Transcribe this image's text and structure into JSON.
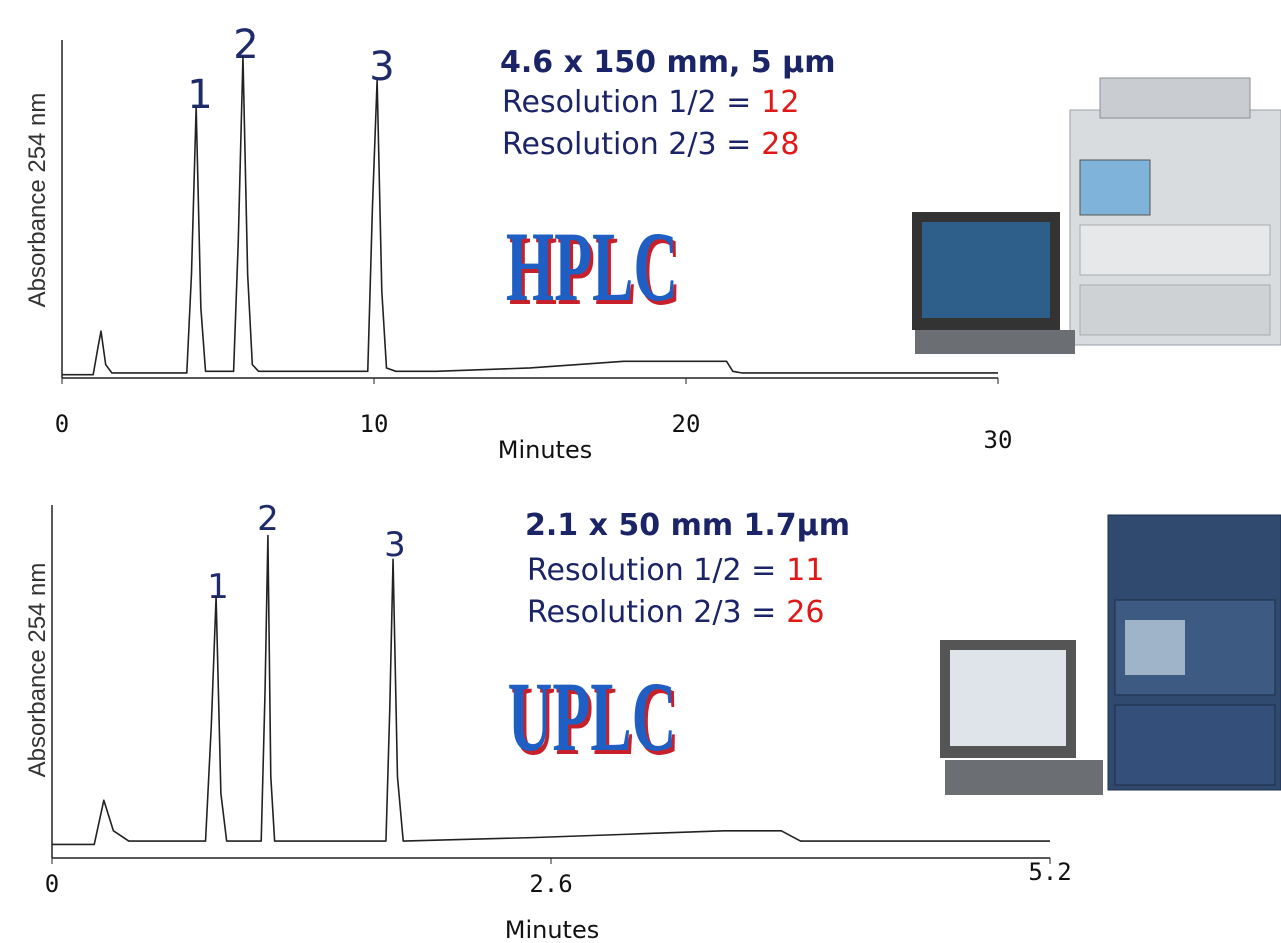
{
  "chart_data": [
    {
      "type": "line",
      "y_label": "Absorbance 254 nm",
      "x_label": "Minutes",
      "xlim": [
        0,
        30
      ],
      "xticks": [
        0,
        10,
        20,
        30
      ],
      "ylim": [
        -1,
        100
      ],
      "x": [
        0,
        1.0,
        1.15,
        1.25,
        1.4,
        1.6,
        4.0,
        4.15,
        4.3,
        4.45,
        4.6,
        5.5,
        5.65,
        5.8,
        5.95,
        6.1,
        6.3,
        9.8,
        9.95,
        10.1,
        10.25,
        10.4,
        10.7,
        12,
        15,
        18,
        21.3,
        21.5,
        21.8,
        25,
        30
      ],
      "values": [
        0,
        0,
        8,
        13,
        3,
        0.5,
        0.5,
        30,
        80,
        20,
        1,
        1,
        40,
        95,
        30,
        3,
        1,
        1,
        50,
        88,
        25,
        2,
        1,
        1,
        2,
        4,
        4,
        1,
        0.5,
        0.5,
        0.5
      ],
      "color": "#222222",
      "peak_labels": [
        "1",
        "2",
        "3"
      ],
      "column": "4.6 x 150 mm,  5 µm",
      "annotations": [
        {
          "text": "Resolution 1/2 =",
          "value": 12
        },
        {
          "text": "Resolution 2/3 =",
          "value": 28
        }
      ],
      "logo": "HPLC"
    },
    {
      "type": "line",
      "y_label": "Absorbance 254 nm",
      "x_label": "Minutes",
      "xlim": [
        0,
        5.2
      ],
      "xticks": [
        0,
        2.6,
        5.2
      ],
      "ylim": [
        -4,
        100
      ],
      "x": [
        0,
        0.22,
        0.27,
        0.32,
        0.4,
        0.8,
        0.83,
        0.855,
        0.88,
        0.91,
        1.09,
        1.11,
        1.125,
        1.14,
        1.16,
        1.74,
        1.76,
        1.777,
        1.8,
        1.83,
        2.5,
        3.0,
        3.5,
        3.8,
        3.9,
        4.5,
        5.2
      ],
      "values": [
        0,
        0,
        13,
        4,
        1,
        1,
        35,
        73,
        15,
        1,
        1,
        45,
        91,
        20,
        1,
        1,
        40,
        84,
        20,
        1,
        2,
        3,
        4,
        4,
        1,
        1,
        1
      ],
      "color": "#222222",
      "peak_labels": [
        "1",
        "2",
        "3"
      ],
      "column": "2.1 x 50 mm 1.7µm",
      "annotations": [
        {
          "text": "Resolution 1/2 =",
          "value": 11
        },
        {
          "text": "Resolution 2/3 =",
          "value": 26
        }
      ],
      "logo": "UPLC"
    }
  ]
}
